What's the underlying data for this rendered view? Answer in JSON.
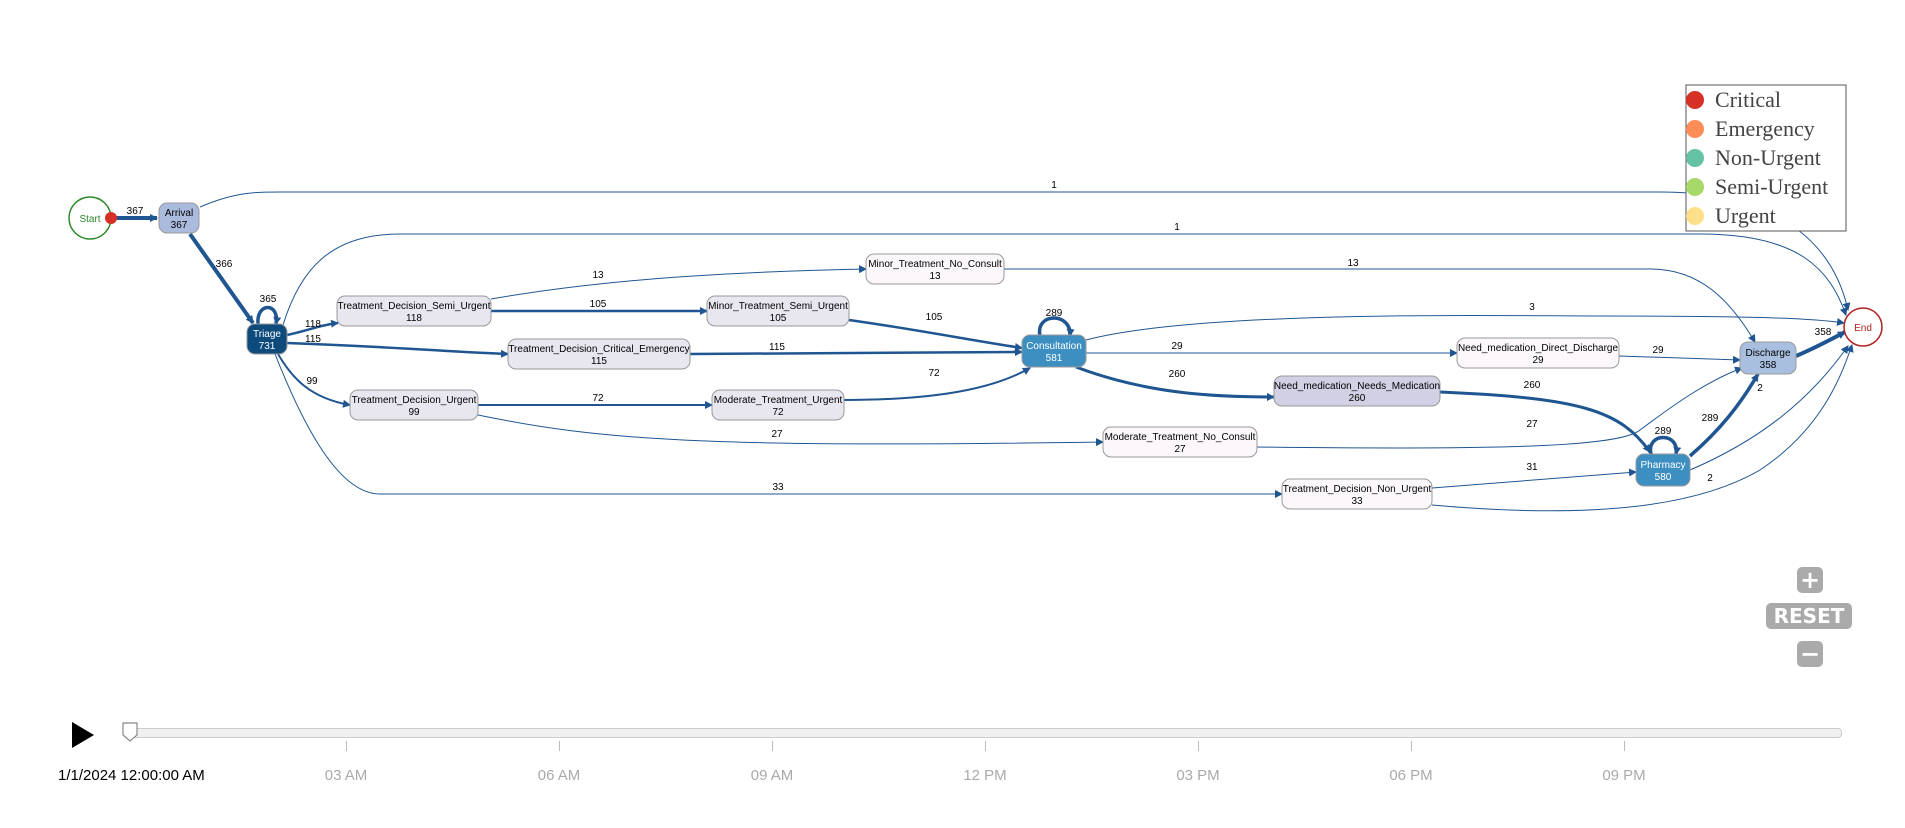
{
  "legend": {
    "items": [
      {
        "label": "Critical",
        "color": "#d73027"
      },
      {
        "label": "Emergency",
        "color": "#fc8d59"
      },
      {
        "label": "Non-Urgent",
        "color": "#66c2a5"
      },
      {
        "label": "Semi-Urgent",
        "color": "#a6d96a"
      },
      {
        "label": "Urgent",
        "color": "#fee08b"
      }
    ]
  },
  "nodes": [
    {
      "id": "start",
      "label": "Start",
      "count": ""
    },
    {
      "id": "arrival",
      "label": "Arrival",
      "count": "367"
    },
    {
      "id": "triage",
      "label": "Triage",
      "count": "731"
    },
    {
      "id": "td_semi",
      "label": "Treatment_Decision_Semi_Urgent",
      "count": "118"
    },
    {
      "id": "td_crit",
      "label": "Treatment_Decision_Critical_Emergency",
      "count": "115"
    },
    {
      "id": "td_urg",
      "label": "Treatment_Decision_Urgent",
      "count": "99"
    },
    {
      "id": "mt_nc",
      "label": "Minor_Treatment_No_Consult",
      "count": "13"
    },
    {
      "id": "mt_semi",
      "label": "Minor_Treatment_Semi_Urgent",
      "count": "105"
    },
    {
      "id": "mod_urg",
      "label": "Moderate_Treatment_Urgent",
      "count": "72"
    },
    {
      "id": "consult",
      "label": "Consultation",
      "count": "581"
    },
    {
      "id": "mod_nc",
      "label": "Moderate_Treatment_No_Consult",
      "count": "27"
    },
    {
      "id": "td_non",
      "label": "Treatment_Decision_Non_Urgent",
      "count": "33"
    },
    {
      "id": "need_med",
      "label": "Need_medication_Needs_Medication",
      "count": "260"
    },
    {
      "id": "need_dis",
      "label": "Need_medication_Direct_Discharge",
      "count": "29"
    },
    {
      "id": "pharmacy",
      "label": "Pharmacy",
      "count": "580"
    },
    {
      "id": "discharge",
      "label": "Discharge",
      "count": "358"
    },
    {
      "id": "end",
      "label": "End",
      "count": ""
    }
  ],
  "edges": [
    {
      "from": "start",
      "to": "arrival",
      "label": "367"
    },
    {
      "from": "arrival",
      "to": "triage",
      "label": "366"
    },
    {
      "from": "arrival",
      "to": "end",
      "label": "1"
    },
    {
      "from": "triage",
      "to": "triage",
      "label": "365"
    },
    {
      "from": "triage",
      "to": "td_semi",
      "label": "118"
    },
    {
      "from": "triage",
      "to": "td_crit",
      "label": "115"
    },
    {
      "from": "triage",
      "to": "td_urg",
      "label": "99"
    },
    {
      "from": "triage",
      "to": "td_non",
      "label": "33"
    },
    {
      "from": "triage",
      "to": "end",
      "label": "1"
    },
    {
      "from": "td_semi",
      "to": "mt_nc",
      "label": "13"
    },
    {
      "from": "td_semi",
      "to": "mt_semi",
      "label": "105"
    },
    {
      "from": "mt_nc",
      "to": "discharge",
      "label": "13"
    },
    {
      "from": "mt_semi",
      "to": "consult",
      "label": "105"
    },
    {
      "from": "td_crit",
      "to": "consult",
      "label": "115"
    },
    {
      "from": "td_urg",
      "to": "mod_urg",
      "label": "72"
    },
    {
      "from": "td_urg",
      "to": "mod_nc",
      "label": "27"
    },
    {
      "from": "mod_urg",
      "to": "consult",
      "label": "72"
    },
    {
      "from": "mod_nc",
      "to": "discharge",
      "label": "27"
    },
    {
      "from": "consult",
      "to": "consult",
      "label": "289"
    },
    {
      "from": "consult",
      "to": "end",
      "label": "3"
    },
    {
      "from": "consult",
      "to": "need_dis",
      "label": "29"
    },
    {
      "from": "consult",
      "to": "need_med",
      "label": "260"
    },
    {
      "from": "need_dis",
      "to": "discharge",
      "label": "29"
    },
    {
      "from": "need_med",
      "to": "pharmacy",
      "label": "260"
    },
    {
      "from": "td_non",
      "to": "pharmacy",
      "label": "31"
    },
    {
      "from": "td_non",
      "to": "end",
      "label": "2"
    },
    {
      "from": "pharmacy",
      "to": "pharmacy",
      "label": "289"
    },
    {
      "from": "pharmacy",
      "to": "discharge",
      "label": "289"
    },
    {
      "from": "pharmacy",
      "to": "end",
      "label": "2"
    },
    {
      "from": "discharge",
      "to": "end",
      "label": "358"
    }
  ],
  "controls": {
    "zoom_in": "+",
    "reset": "RESET",
    "zoom_out": "−"
  },
  "timeline": {
    "start_label": "1/1/2024 12:00:00 AM",
    "progress": 0,
    "ticks": [
      "03 AM",
      "06 AM",
      "09 AM",
      "12 PM",
      "03 PM",
      "06 PM",
      "09 PM"
    ]
  }
}
